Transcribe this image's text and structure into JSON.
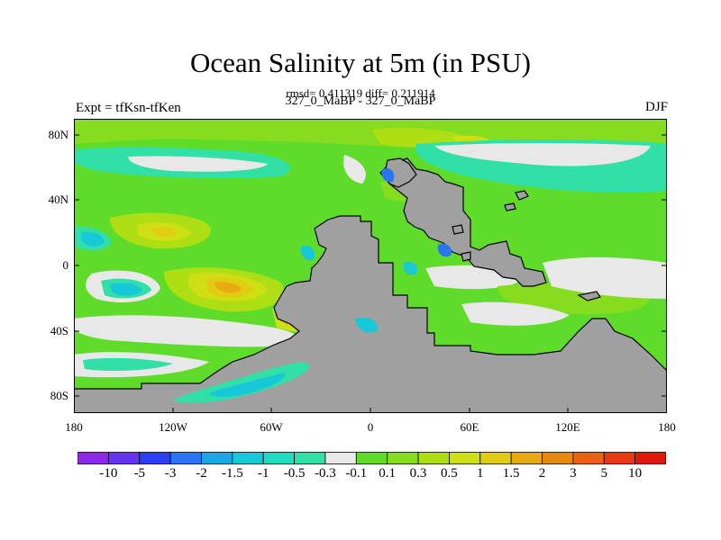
{
  "header": {
    "title": "Ocean Salinity at 5m (in PSU)",
    "stats": "rmsd= 0.411319 diff= 0.211914",
    "experiment": "Expt = tfKsn-tfKen",
    "periods": "327_0_MaBP - 327_0_MaBP",
    "season": "DJF"
  },
  "map": {
    "lat_ticks": [
      "80N",
      "40N",
      "0",
      "40S",
      "80S"
    ],
    "lon_ticks": [
      "180",
      "120W",
      "60W",
      "0",
      "60E",
      "120E",
      "180"
    ],
    "land_color": "#a0a0a0"
  },
  "colorbar": {
    "labels": [
      "-10",
      "-5",
      "-3",
      "-2",
      "-1.5",
      "-1",
      "-0.5",
      "-0.3",
      "-0.1",
      "0.1",
      "0.3",
      "0.5",
      "1",
      "1.5",
      "2",
      "3",
      "5",
      "10"
    ],
    "colors": [
      "#8c28e6",
      "#6633ee",
      "#2c3ff0",
      "#2a76f0",
      "#1ea4e8",
      "#16c8d8",
      "#20dcc0",
      "#30e0a6",
      "#e8e8e8",
      "#5fdc2a",
      "#86dc1e",
      "#aede14",
      "#cedf14",
      "#e0cc12",
      "#e8aa10",
      "#e88810",
      "#e86410",
      "#e83a10",
      "#e01a0a"
    ]
  }
}
